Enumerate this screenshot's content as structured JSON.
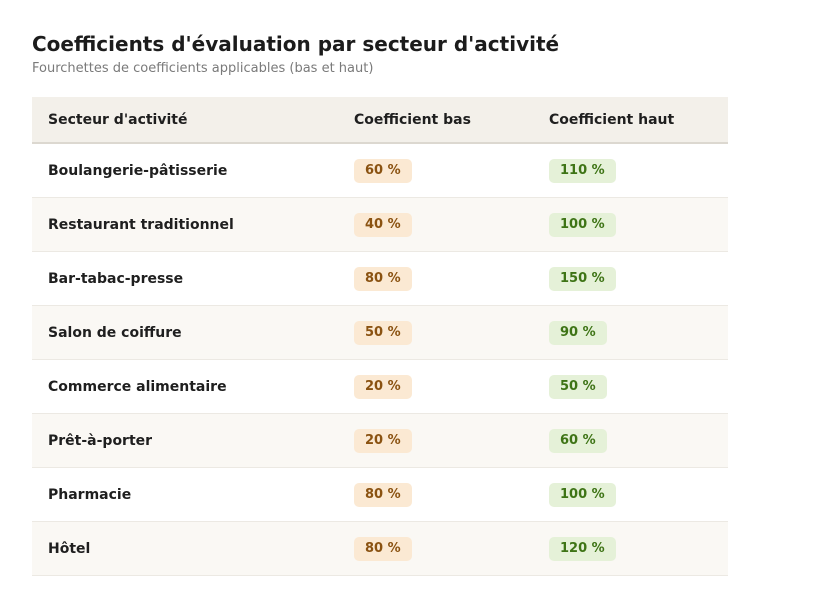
{
  "title": "Coefficients d'évaluation par secteur d'activité",
  "subtitle": "Fourchettes de coefficients applicables (bas et haut)",
  "columns": [
    "Secteur d'activité",
    "Coefficient bas",
    "Coefficient haut"
  ],
  "rows": [
    {
      "sector": "Boulangerie-pâtisserie",
      "low": "60 %",
      "high": "110 %"
    },
    {
      "sector": "Restaurant traditionnel",
      "low": "40 %",
      "high": "100 %"
    },
    {
      "sector": "Bar-tabac-presse",
      "low": "80 %",
      "high": "150 %"
    },
    {
      "sector": "Salon de coiffure",
      "low": "50 %",
      "high": "90 %"
    },
    {
      "sector": "Commerce alimentaire",
      "low": "20 %",
      "high": "50 %"
    },
    {
      "sector": "Prêt-à-porter",
      "low": "20 %",
      "high": "60 %"
    },
    {
      "sector": "Pharmacie",
      "low": "80 %",
      "high": "100 %"
    },
    {
      "sector": "Hôtel",
      "low": "80 %",
      "high": "120 %"
    }
  ],
  "colors": {
    "header_bg": "#f3f0ea",
    "low_pill_bg": "#fbe9d3",
    "low_pill_text": "#8a5211",
    "high_pill_bg": "#e5f1d8",
    "high_pill_text": "#3e7416"
  }
}
